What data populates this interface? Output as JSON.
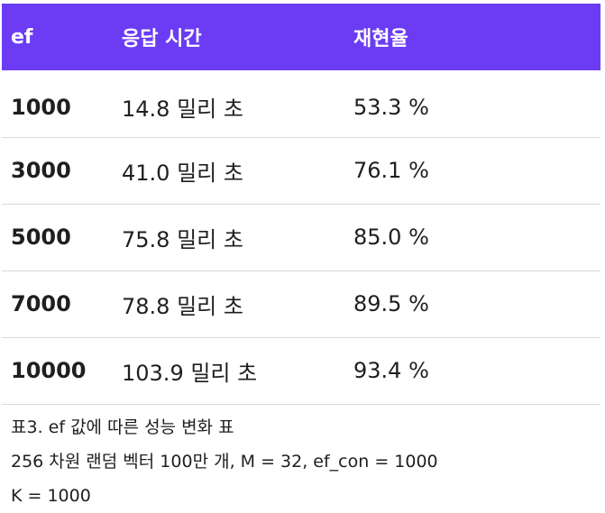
{
  "table": {
    "headers": {
      "ef": "ef",
      "response_time": "응답 시간",
      "recall": "재현율"
    },
    "rows": [
      {
        "ef": "1000",
        "response_time": "14.8 밀리 초",
        "recall": "53.3 %"
      },
      {
        "ef": "3000",
        "response_time": "41.0 밀리 초",
        "recall": "76.1 %"
      },
      {
        "ef": "5000",
        "response_time": "75.8 밀리 초",
        "recall": "85.0 %"
      },
      {
        "ef": "7000",
        "response_time": "78.8 밀리 초",
        "recall": "89.5 %"
      },
      {
        "ef": "10000",
        "response_time": "103.9 밀리 초",
        "recall": "93.4 %"
      }
    ],
    "header_color": "#6c3cf5"
  },
  "caption": {
    "line1": "표3. ef 값에 따른 성능 변화 표",
    "line2": "256 차원 랜덤 벡터 100만 개, M = 32, ef_con = 1000",
    "line3": "K = 1000"
  }
}
